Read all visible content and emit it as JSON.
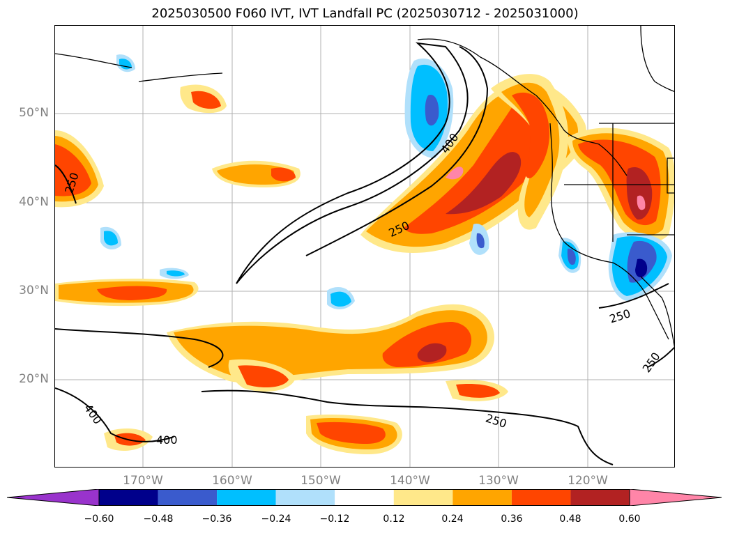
{
  "title": "2025030500 F060 IVT, IVT Landfall PC (2025030712 - 2025031000)",
  "map": {
    "lat_labels": [
      "50°N",
      "40°N",
      "30°N",
      "20°N"
    ],
    "lon_labels": [
      "170°W",
      "160°W",
      "150°W",
      "140°W",
      "130°W",
      "120°W"
    ],
    "contour_labels": [
      "400",
      "250",
      "250",
      "400",
      "250",
      "250",
      "400",
      "250"
    ],
    "colors": {
      "neg_extreme": "#9933cc",
      "neg_060": "#00008b",
      "neg_048": "#3a5bcd",
      "neg_036": "#00bfff",
      "neg_024": "#b0e0fb",
      "neutral": "#ffffff",
      "pos_012": "#ffe88a",
      "pos_024": "#ffa500",
      "pos_036": "#ff4500",
      "pos_048": "#b22222",
      "pos_060": "#ff85a8"
    }
  },
  "colorbar": {
    "ticks": [
      "−0.60",
      "−0.48",
      "−0.36",
      "−0.24",
      "−0.12",
      "0.12",
      "0.24",
      "0.36",
      "0.48",
      "0.60"
    ],
    "colors": [
      "#9933cc",
      "#00008b",
      "#3a5bcd",
      "#00bfff",
      "#b0e0fb",
      "#ffffff",
      "#ffe88a",
      "#ffa500",
      "#ff4500",
      "#b22222",
      "#ff85a8"
    ]
  }
}
